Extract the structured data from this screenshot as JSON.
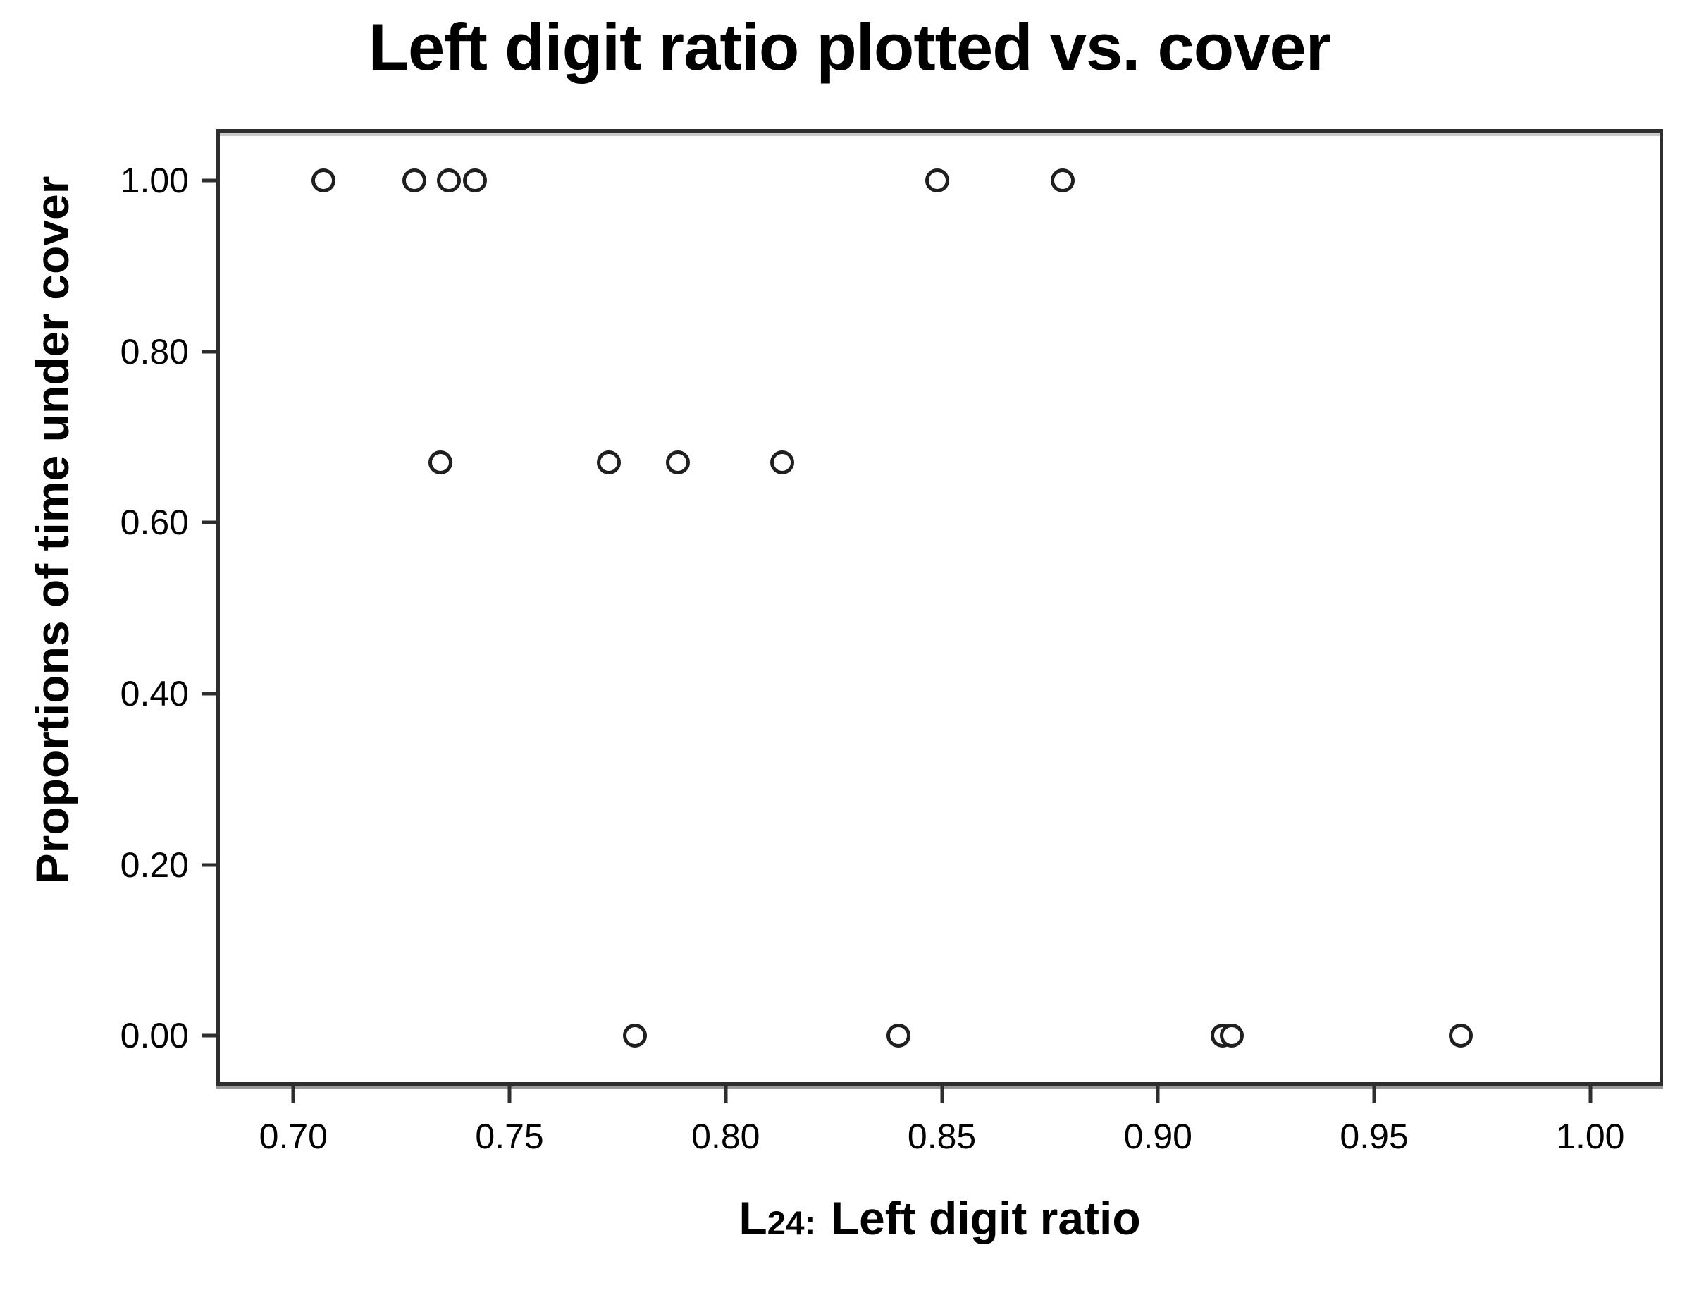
{
  "title": "Left digit ratio plotted vs. cover",
  "colors": {
    "background": "#ffffff",
    "frame": "#2e2e2e",
    "frame_inner_shadow": "#c8c8c8",
    "frame_outer_shadow": "#9a9a9a",
    "marker_stroke": "#1f1f1f",
    "text": "#000000"
  },
  "chart_data": {
    "type": "scatter",
    "title": "Left digit ratio plotted vs. cover",
    "xlabel": {
      "prefix": "L",
      "subscript": "24",
      "separator": ":",
      "label": "Left digit ratio",
      "full_text": "L24: Left digit ratio"
    },
    "ylabel": "Proportions of time under cover",
    "xlim": [
      0.683,
      1.016
    ],
    "ylim": [
      -0.054,
      1.056
    ],
    "grid": false,
    "legend": null,
    "marker": "open-circle",
    "x_ticks": [
      {
        "value": 0.7,
        "label": "0.70"
      },
      {
        "value": 0.75,
        "label": "0.75"
      },
      {
        "value": 0.8,
        "label": "0.80"
      },
      {
        "value": 0.85,
        "label": "0.85"
      },
      {
        "value": 0.9,
        "label": "0.90"
      },
      {
        "value": 0.95,
        "label": "0.95"
      },
      {
        "value": 1.0,
        "label": "1.00"
      }
    ],
    "y_ticks": [
      {
        "value": 0.0,
        "label": "0.00"
      },
      {
        "value": 0.2,
        "label": "0.20"
      },
      {
        "value": 0.4,
        "label": "0.40"
      },
      {
        "value": 0.6,
        "label": "0.60"
      },
      {
        "value": 0.8,
        "label": "0.80"
      },
      {
        "value": 1.0,
        "label": "1.00"
      }
    ],
    "points": [
      {
        "x": 0.707,
        "y": 1.0
      },
      {
        "x": 0.728,
        "y": 1.0
      },
      {
        "x": 0.736,
        "y": 1.0
      },
      {
        "x": 0.742,
        "y": 1.0
      },
      {
        "x": 0.849,
        "y": 1.0
      },
      {
        "x": 0.878,
        "y": 1.0
      },
      {
        "x": 0.734,
        "y": 0.67
      },
      {
        "x": 0.773,
        "y": 0.67
      },
      {
        "x": 0.789,
        "y": 0.67
      },
      {
        "x": 0.813,
        "y": 0.67
      },
      {
        "x": 0.779,
        "y": 0.0
      },
      {
        "x": 0.84,
        "y": 0.0
      },
      {
        "x": 0.915,
        "y": 0.0
      },
      {
        "x": 0.917,
        "y": 0.0
      },
      {
        "x": 0.97,
        "y": 0.0
      }
    ]
  }
}
